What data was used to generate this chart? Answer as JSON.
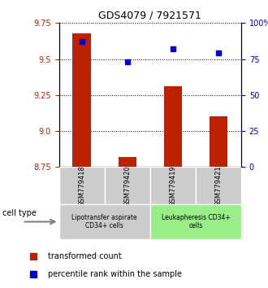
{
  "title": "GDS4079 / 7921571",
  "samples": [
    "GSM779418",
    "GSM779420",
    "GSM779419",
    "GSM779421"
  ],
  "red_values": [
    9.68,
    8.82,
    9.31,
    9.1
  ],
  "blue_values": [
    87,
    73,
    82,
    79
  ],
  "ylim_left": [
    8.75,
    9.75
  ],
  "ylim_right": [
    0,
    100
  ],
  "yticks_left": [
    8.75,
    9.0,
    9.25,
    9.5,
    9.75
  ],
  "yticks_right": [
    0,
    25,
    50,
    75,
    100
  ],
  "ytick_labels_right": [
    "0",
    "25",
    "50",
    "75",
    "100%"
  ],
  "red_color": "#bb2200",
  "blue_color": "#0000cc",
  "groups": [
    {
      "label": "Lipotransfer aspirate\nCD34+ cells",
      "indices": [
        0,
        1
      ],
      "color": "#cccccc"
    },
    {
      "label": "Leukapheresis CD34+\ncells",
      "indices": [
        2,
        3
      ],
      "color": "#99ee88"
    }
  ],
  "group_label": "cell type",
  "legend_red": "transformed count",
  "legend_blue": "percentile rank within the sample",
  "bar_width": 0.4,
  "baseline": 8.75
}
